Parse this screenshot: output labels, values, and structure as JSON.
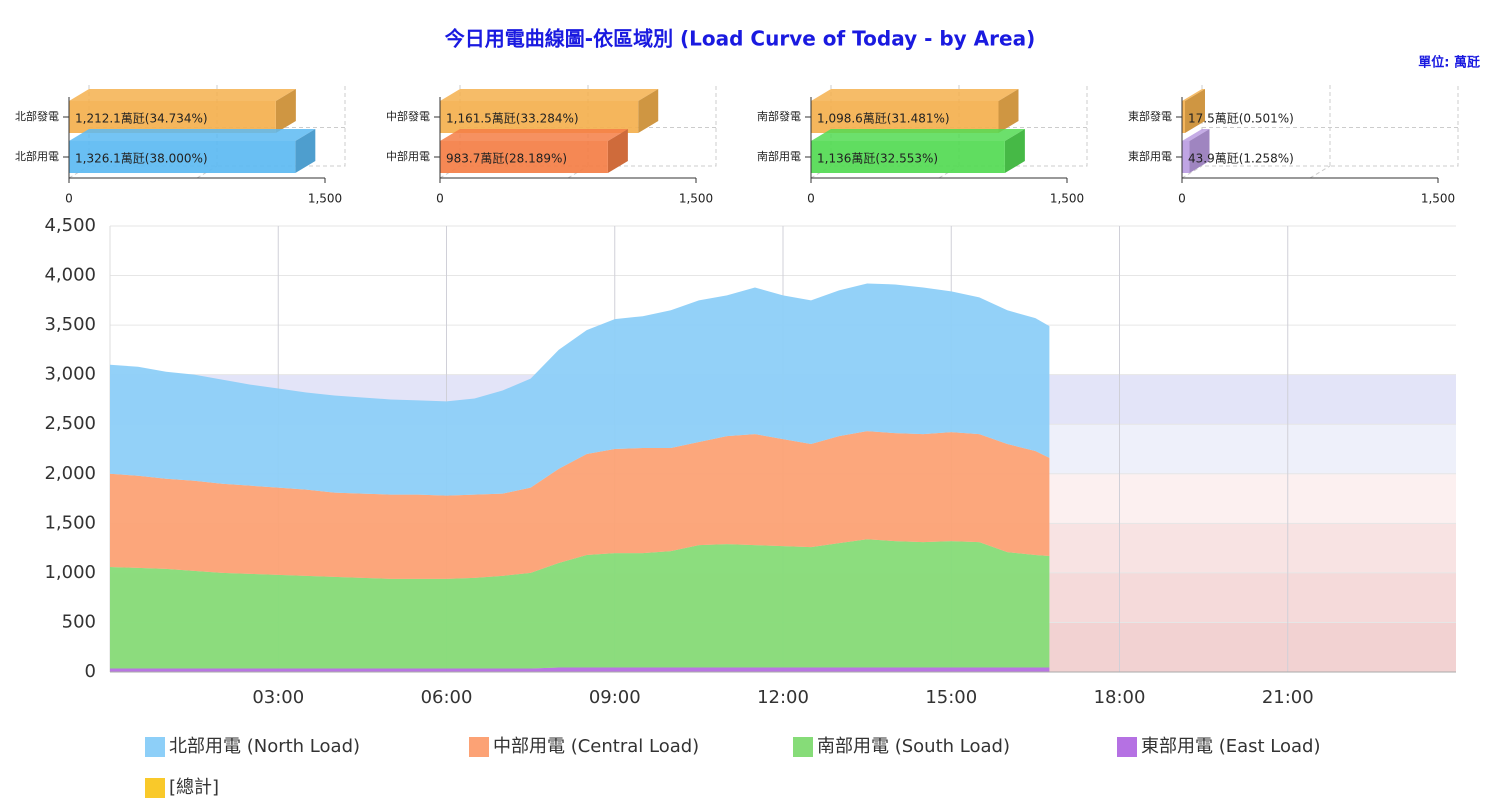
{
  "chart_data": [
    {
      "type": "area",
      "stacked": true,
      "title": "今日用電曲線圖-依區域別 (Load Curve of Today - by Area)",
      "unit_label": "單位: 萬瓩",
      "x": [
        0,
        0.5,
        1,
        1.5,
        2,
        2.5,
        3,
        3.5,
        4,
        4.5,
        5,
        5.5,
        6,
        6.5,
        7,
        7.5,
        8,
        8.5,
        9,
        9.5,
        10,
        10.5,
        11,
        11.5,
        12,
        12.5,
        13,
        13.5,
        14,
        14.5,
        15,
        15.5,
        16,
        16.5,
        16.75
      ],
      "xlim": [
        0,
        24
      ],
      "xticks": [
        {
          "value": 3,
          "label": "03:00"
        },
        {
          "value": 6,
          "label": "06:00"
        },
        {
          "value": 9,
          "label": "09:00"
        },
        {
          "value": 12,
          "label": "12:00"
        },
        {
          "value": 15,
          "label": "15:00"
        },
        {
          "value": 18,
          "label": "18:00"
        },
        {
          "value": 21,
          "label": "21:00"
        }
      ],
      "ylim": [
        0,
        4500
      ],
      "yticks": [
        0,
        500,
        {
          "value": 1000,
          "label": "1,000"
        },
        {
          "value": 1500,
          "label": "1,500"
        },
        {
          "value": 2000,
          "label": "2,000"
        },
        {
          "value": 2500,
          "label": "2,500"
        },
        {
          "value": 3000,
          "label": "3,000"
        },
        {
          "value": 3500,
          "label": "3,500"
        },
        {
          "value": 4000,
          "label": "4,000"
        },
        {
          "value": 4500,
          "label": "4,500"
        }
      ],
      "grid": true,
      "plot_bands": [
        {
          "from": 0,
          "to": 500,
          "color": "#f2d2d2"
        },
        {
          "from": 500,
          "to": 1000,
          "color": "#f5dada"
        },
        {
          "from": 1000,
          "to": 1500,
          "color": "#f8e3e3"
        },
        {
          "from": 1500,
          "to": 2000,
          "color": "#fcf0f0"
        },
        {
          "from": 2000,
          "to": 2500,
          "color": "#eef0fa"
        },
        {
          "from": 2500,
          "to": 3000,
          "color": "#e3e4f8"
        }
      ],
      "series": [
        {
          "name": "北部用電 (North Load)",
          "color": "#8dcff8",
          "values": [
            1100,
            1100,
            1080,
            1070,
            1050,
            1020,
            1000,
            980,
            980,
            970,
            960,
            950,
            950,
            970,
            1040,
            1100,
            1200,
            1250,
            1310,
            1330,
            1390,
            1430,
            1420,
            1480,
            1450,
            1450,
            1470,
            1490,
            1500,
            1480,
            1420,
            1380,
            1350,
            1340,
            1330
          ]
        },
        {
          "name": "中部用電 (Central Load)",
          "color": "#fca275",
          "values": [
            940,
            930,
            910,
            910,
            900,
            890,
            880,
            870,
            850,
            850,
            850,
            850,
            840,
            840,
            830,
            860,
            950,
            1020,
            1050,
            1060,
            1040,
            1040,
            1090,
            1120,
            1080,
            1040,
            1080,
            1090,
            1090,
            1090,
            1100,
            1090,
            1090,
            1050,
            990
          ]
        },
        {
          "name": "南部用電 (South Load)",
          "color": "#86dc78",
          "values": [
            1025,
            1015,
            1005,
            985,
            965,
            955,
            945,
            935,
            925,
            915,
            905,
            905,
            905,
            915,
            935,
            965,
            1055,
            1135,
            1155,
            1155,
            1175,
            1235,
            1245,
            1235,
            1225,
            1215,
            1255,
            1295,
            1275,
            1265,
            1275,
            1265,
            1165,
            1135,
            1125
          ]
        },
        {
          "name": "東部用電 (East Load)",
          "color": "#b571e3",
          "values": [
            35,
            35,
            35,
            35,
            35,
            35,
            35,
            35,
            35,
            35,
            35,
            35,
            35,
            35,
            35,
            35,
            45,
            45,
            45,
            45,
            45,
            45,
            45,
            45,
            45,
            45,
            45,
            45,
            45,
            45,
            45,
            45,
            45,
            45,
            45
          ]
        }
      ],
      "extra_legend": [
        {
          "name": "[總計]",
          "color": "#f9c92a"
        }
      ]
    },
    {
      "type": "bar",
      "orientation": "horizontal",
      "categories": [
        "北部發電",
        "北部用電"
      ],
      "values": [
        1212.1,
        1326.1
      ],
      "value_labels": [
        "1,212.1萬瓩(34.734%)",
        "1,326.1萬瓩(38.000%)"
      ],
      "colors": [
        "#f4b04e",
        "#5cbaf2"
      ],
      "xlim": [
        0,
        1500
      ],
      "xticks": [
        0,
        {
          "value": 1500,
          "label": "1,500"
        }
      ]
    },
    {
      "type": "bar",
      "orientation": "horizontal",
      "categories": [
        "中部發電",
        "中部用電"
      ],
      "values": [
        1161.5,
        983.7
      ],
      "value_labels": [
        "1,161.5萬瓩(33.284%)",
        "983.7萬瓩(28.189%)"
      ],
      "colors": [
        "#f4b04e",
        "#f47e45"
      ],
      "xlim": [
        0,
        1500
      ],
      "xticks": [
        0,
        {
          "value": 1500,
          "label": "1,500"
        }
      ]
    },
    {
      "type": "bar",
      "orientation": "horizontal",
      "categories": [
        "南部發電",
        "南部用電"
      ],
      "values": [
        1098.6,
        1136
      ],
      "value_labels": [
        "1,098.6萬瓩(31.481%)",
        "1,136萬瓩(32.553%)"
      ],
      "colors": [
        "#f4b04e",
        "#52da52"
      ],
      "xlim": [
        0,
        1500
      ],
      "xticks": [
        0,
        {
          "value": 1500,
          "label": "1,500"
        }
      ]
    },
    {
      "type": "bar",
      "orientation": "horizontal",
      "categories": [
        "東部發電",
        "東部用電"
      ],
      "values": [
        17.5,
        43.9
      ],
      "value_labels": [
        "17.5萬瓩(0.501%)",
        "43.9萬瓩(1.258%)"
      ],
      "colors": [
        "#f4b04e",
        "#bb9de2"
      ],
      "xlim": [
        0,
        1500
      ],
      "xticks": [
        0,
        {
          "value": 1500,
          "label": "1,500"
        }
      ]
    }
  ]
}
